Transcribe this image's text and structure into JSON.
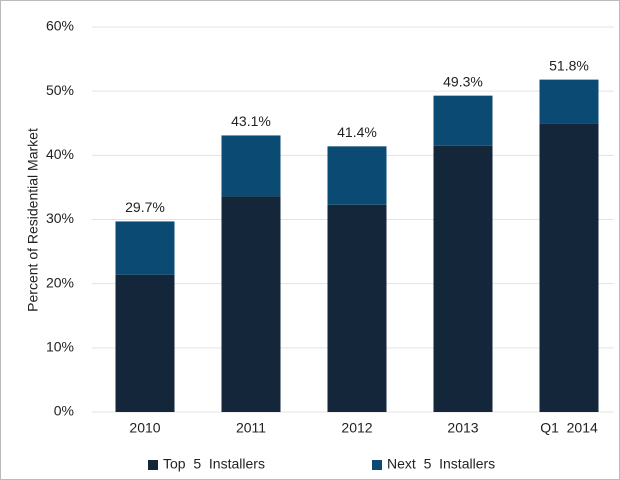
{
  "chart_data": {
    "type": "stacked-bar",
    "y_label": "Percent of Residential Market",
    "categories": [
      "2010",
      "2011",
      "2012",
      "2013",
      "Q1  2014"
    ],
    "series": [
      {
        "name": "Top  5  Installers",
        "color": "#13263a",
        "values": [
          21.4,
          33.6,
          32.3,
          41.5,
          45.0
        ]
      },
      {
        "name": "Next  5  Installers",
        "color": "#0b4a72",
        "values": [
          8.3,
          9.5,
          9.1,
          7.8,
          6.8
        ]
      }
    ],
    "totals": [
      29.7,
      43.1,
      41.4,
      49.3,
      51.8
    ],
    "total_labels": [
      "29.7%",
      "43.1%",
      "41.4%",
      "49.3%",
      "51.8%"
    ],
    "ylim": [
      0,
      60
    ],
    "yticks": [
      {
        "value": 0,
        "label": "0%"
      },
      {
        "value": 10,
        "label": "10%"
      },
      {
        "value": 20,
        "label": "20%"
      },
      {
        "value": 30,
        "label": "30%"
      },
      {
        "value": 40,
        "label": "40%"
      },
      {
        "value": 50,
        "label": "50%"
      },
      {
        "value": 60,
        "label": "60%"
      }
    ],
    "grid": true
  }
}
